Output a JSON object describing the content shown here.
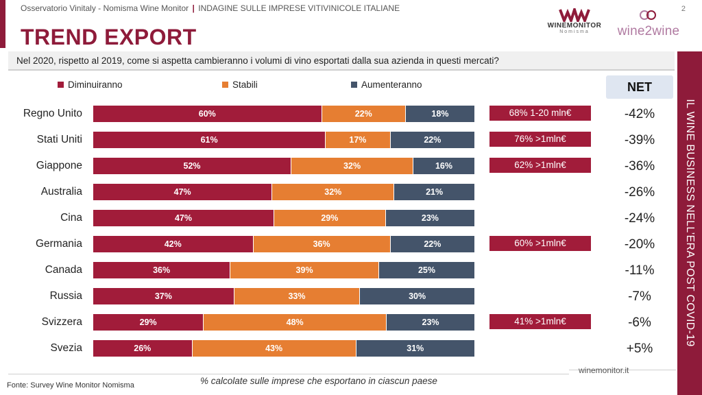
{
  "header": {
    "source_line": "Osservatorio Vinitaly - Nomisma Wine Monitor",
    "separator": "|",
    "survey_line": "INDAGINE SULLE IMPRESE VITIVINICOLE ITALIANE",
    "page_number": "2"
  },
  "title": "TREND EXPORT",
  "logos": {
    "winemonitor_name": "WINEMONITOR",
    "winemonitor_sub": "Nomisma",
    "wine2wine_name": "wine2wine"
  },
  "question": "Nel 2020, rispetto al 2019, come si aspetta cambieranno i volumi di vino esportati dalla sua azienda in questi mercati?",
  "side_band_text": "IL WINE BUSINESS NELL’ERA POST COVID-19",
  "net_header": "NET",
  "colors": {
    "diminuiranno": "#a11c3a",
    "stabili": "#e67e32",
    "aumenteranno": "#44546a",
    "brand": "#8e1b3a"
  },
  "chart_data": {
    "type": "bar",
    "orientation": "horizontal-stacked-100",
    "categories": [
      "Regno Unito",
      "Stati Uniti",
      "Giappone",
      "Australia",
      "Cina",
      "Germania",
      "Canada",
      "Russia",
      "Svizzera",
      "Svezia"
    ],
    "series": [
      {
        "name": "Diminuiranno",
        "values": [
          60,
          61,
          52,
          47,
          47,
          42,
          36,
          37,
          29,
          26
        ],
        "labels": [
          "60%",
          "61%",
          "52%",
          "47%",
          "47%",
          "42%",
          "36%",
          "37%",
          "29%",
          "26%"
        ]
      },
      {
        "name": "Stabili",
        "values": [
          22,
          17,
          32,
          32,
          29,
          36,
          39,
          33,
          48,
          43
        ],
        "labels": [
          "22%",
          "17%",
          "32%",
          "32%",
          "29%",
          "36%",
          "39%",
          "33%",
          "48%",
          "43%"
        ]
      },
      {
        "name": "Aumenteranno",
        "values": [
          18,
          22,
          16,
          21,
          23,
          22,
          25,
          30,
          23,
          31
        ],
        "labels": [
          "18%",
          "22%",
          "16%",
          "21%",
          "23%",
          "22%",
          "25%",
          "30%",
          "23%",
          "31%"
        ]
      }
    ],
    "net": [
      "-42%",
      "-39%",
      "-36%",
      "-26%",
      "-24%",
      "-20%",
      "-11%",
      "-7%",
      "-6%",
      "+5%"
    ],
    "notes": [
      "68% 1-20 mln€",
      "76% >1mln€",
      "62% >1mln€",
      "",
      "",
      "60% >1mln€",
      "",
      "",
      "41% >1mln€",
      ""
    ],
    "legend_placement": "top",
    "xlim": [
      0,
      100
    ]
  },
  "footer": {
    "site": "winemonitor.it",
    "source": "Fonte: Survey Wine Monitor Nomisma",
    "footnote": "% calcolate sulle imprese che esportano in ciascun paese"
  }
}
